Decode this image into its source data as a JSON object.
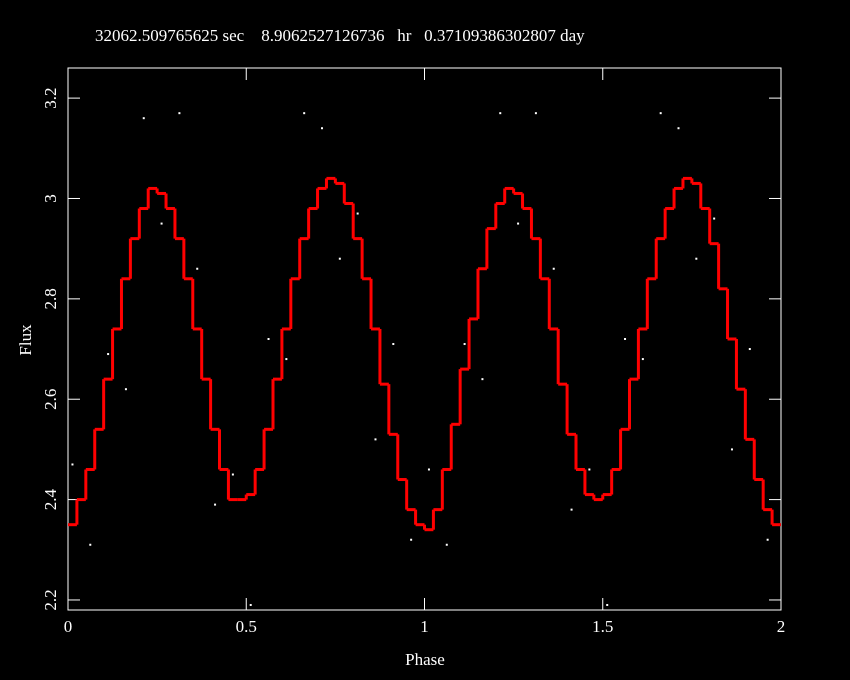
{
  "chart_data": {
    "type": "scatter",
    "title": "32062.509765625 sec    8.9062527126736   hr   0.37109386302807 day",
    "xlabel": "Phase",
    "ylabel": "Flux",
    "xlim": [
      0,
      2
    ],
    "ylim": [
      2.18,
      3.26
    ],
    "xticks": [
      0,
      0.5,
      1,
      1.5,
      2
    ],
    "yticks": [
      2.2,
      2.4,
      2.6,
      2.8,
      3,
      3.2
    ],
    "color": "#ffffff",
    "x": [
      0.0125,
      0.0625,
      0.1125,
      0.1625,
      0.2125,
      0.2625,
      0.3125,
      0.3625,
      0.4125,
      0.4625,
      0.5125,
      0.5625,
      0.6125,
      0.6625,
      0.7125,
      0.7625,
      0.8125,
      0.8625,
      0.9125,
      0.9625,
      1.0125,
      1.0625,
      1.1125,
      1.1625,
      1.2125,
      1.2625,
      1.3125,
      1.3625,
      1.4125,
      1.4625,
      1.5125,
      1.5625,
      1.6125,
      1.6625,
      1.7125,
      1.7625,
      1.8125,
      1.8625,
      1.9125,
      1.9625
    ],
    "y": [
      2.47,
      2.31,
      2.69,
      2.62,
      3.16,
      2.95,
      3.17,
      2.86,
      2.39,
      2.45,
      2.19,
      2.72,
      2.68,
      3.17,
      3.14,
      2.88,
      2.97,
      2.52,
      2.71,
      2.32,
      2.46,
      2.31,
      2.71,
      2.64,
      3.17,
      2.95,
      3.17,
      2.86,
      2.38,
      2.46,
      2.19,
      2.72,
      2.68,
      3.17,
      3.14,
      2.88,
      2.96,
      2.5,
      2.7,
      2.32
    ],
    "step_line": {
      "color": "#ff0000",
      "bins": [
        0,
        0.025,
        0.05,
        0.075,
        0.1,
        0.125,
        0.15,
        0.175,
        0.2,
        0.225,
        0.25,
        0.275,
        0.3,
        0.325,
        0.35,
        0.375,
        0.4,
        0.425,
        0.45,
        0.475,
        0.5,
        0.525,
        0.55,
        0.575,
        0.6,
        0.625,
        0.65,
        0.675,
        0.7,
        0.725,
        0.75,
        0.775,
        0.8,
        0.825,
        0.85,
        0.875,
        0.9,
        0.925,
        0.95,
        0.975,
        1,
        1.025,
        1.05,
        1.075,
        1.1,
        1.125,
        1.15,
        1.175,
        1.2,
        1.225,
        1.25,
        1.275,
        1.3,
        1.325,
        1.35,
        1.375,
        1.4,
        1.425,
        1.45,
        1.475,
        1.5,
        1.525,
        1.55,
        1.575,
        1.6,
        1.625,
        1.65,
        1.675,
        1.7,
        1.725,
        1.75,
        1.775,
        1.8,
        1.825,
        1.85,
        1.875,
        1.9,
        1.925,
        1.95,
        1.975,
        2
      ],
      "values": [
        2.35,
        2.4,
        2.46,
        2.54,
        2.64,
        2.74,
        2.84,
        2.92,
        2.98,
        3.02,
        3.01,
        2.98,
        2.92,
        2.84,
        2.74,
        2.64,
        2.54,
        2.46,
        2.4,
        2.4,
        2.41,
        2.46,
        2.54,
        2.64,
        2.74,
        2.84,
        2.92,
        2.98,
        3.02,
        3.04,
        3.03,
        2.99,
        2.92,
        2.84,
        2.74,
        2.63,
        2.53,
        2.44,
        2.38,
        2.35,
        2.34,
        2.38,
        2.46,
        2.55,
        2.66,
        2.76,
        2.86,
        2.94,
        2.99,
        3.02,
        3.01,
        2.98,
        2.92,
        2.84,
        2.74,
        2.63,
        2.53,
        2.46,
        2.41,
        2.4,
        2.41,
        2.46,
        2.54,
        2.64,
        2.74,
        2.84,
        2.92,
        2.98,
        3.02,
        3.04,
        3.03,
        2.98,
        2.91,
        2.82,
        2.72,
        2.62,
        2.52,
        2.44,
        2.38,
        2.35
      ]
    }
  }
}
